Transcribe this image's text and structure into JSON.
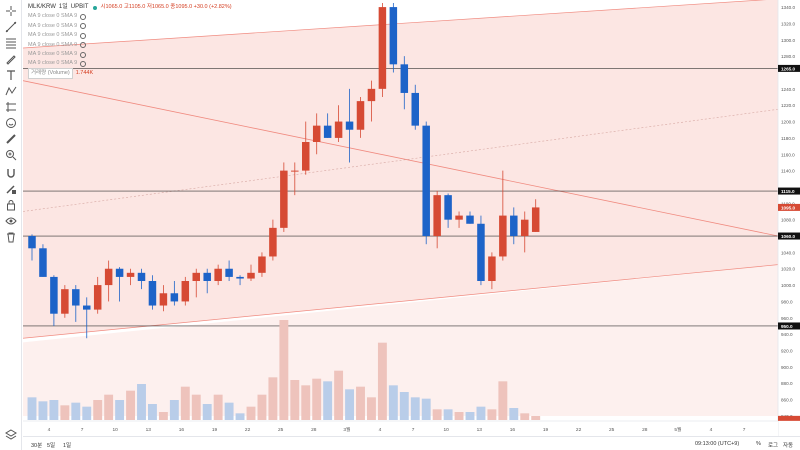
{
  "legend": {
    "symbol": "MLK/KRW",
    "interval": "1일",
    "exchange": "UPBIT",
    "ohlc": "시1065.0 고1105.0 저1065.0 종1095.0 +30.0 (+2.82%)",
    "ma_rows": [
      "MA 9 close 0 SMA 9",
      "MA 9 close 0 SMA 9",
      "MA 9 close 0 SMA 9",
      "MA 9 close 0 SMA 9",
      "MA 9 close 0 SMA 9",
      "MA 9 close 0 SMA 9"
    ],
    "volume_label": "거래량 (Volume)",
    "volume_value": "1.744K"
  },
  "price_axis": {
    "ticks": [
      "1340.0",
      "1320.0",
      "1300.0",
      "1280.0",
      "1240.0",
      "1220.0",
      "1200.0",
      "1180.0",
      "1160.0",
      "1140.0",
      "1100.0",
      "1080.0",
      "1040.0",
      "1020.0",
      "1000.0",
      "980.0",
      "960.0",
      "940.0",
      "920.0",
      "900.0",
      "880.0",
      "860.0",
      "840.0"
    ],
    "markers": [
      {
        "label": "1265.0",
        "kind": "hline"
      },
      {
        "label": "1115.0",
        "kind": "hline"
      },
      {
        "label": "1095.0",
        "kind": "current"
      },
      {
        "label": "1060.0",
        "kind": "hline"
      },
      {
        "label": "950.0",
        "kind": "hline"
      },
      {
        "label": "",
        "kind": "volume"
      }
    ]
  },
  "time_axis": {
    "labels": [
      "4",
      "7",
      "10",
      "13",
      "16",
      "19",
      "22",
      "25",
      "28",
      "3월",
      "4",
      "7",
      "10",
      "13",
      "16",
      "19",
      "22",
      "25",
      "28",
      "5월",
      "4",
      "7"
    ]
  },
  "bottom": {
    "ranges": [
      "30분",
      "5일",
      "1일"
    ],
    "clock": "09:13:00 (UTC+9)",
    "percent": "%",
    "log": "로그",
    "auto": "자동"
  },
  "tools": [
    "crosshair-icon",
    "trendline-icon",
    "fib-icon",
    "brush-icon",
    "text-icon",
    "pattern-icon",
    "forecast-icon",
    "emoji-icon",
    "ruler-icon",
    "zoom-icon",
    "magnet-icon",
    "lock-drawing-icon",
    "lock-icon",
    "eye-icon",
    "trash-icon"
  ],
  "colors": {
    "up": "#d64a34",
    "down": "#1d63c8",
    "vol_up": "#eec3bc",
    "vol_down": "#b9cde9",
    "channel_fill": "#fce6e3",
    "channel_line": "#f08b80",
    "current_marker": "#d64a34"
  },
  "chart_data": {
    "type": "candlestick",
    "y_unit": "KRW",
    "ylim": [
      835,
      1345
    ],
    "candles": [
      {
        "o": 1060,
        "h": 1062,
        "l": 1030,
        "c": 1045,
        "v": 0.34
      },
      {
        "o": 1045,
        "h": 1050,
        "l": 1010,
        "c": 1010,
        "v": 0.28
      },
      {
        "o": 1010,
        "h": 1012,
        "l": 950,
        "c": 965,
        "v": 0.3
      },
      {
        "o": 965,
        "h": 1000,
        "l": 960,
        "c": 995,
        "v": 0.22
      },
      {
        "o": 995,
        "h": 1000,
        "l": 955,
        "c": 975,
        "v": 0.26
      },
      {
        "o": 975,
        "h": 985,
        "l": 935,
        "c": 970,
        "v": 0.2
      },
      {
        "o": 970,
        "h": 1010,
        "l": 965,
        "c": 1000,
        "v": 0.3
      },
      {
        "o": 1000,
        "h": 1030,
        "l": 980,
        "c": 1020,
        "v": 0.38
      },
      {
        "o": 1020,
        "h": 1022,
        "l": 980,
        "c": 1010,
        "v": 0.3
      },
      {
        "o": 1010,
        "h": 1020,
        "l": 1000,
        "c": 1015,
        "v": 0.44
      },
      {
        "o": 1015,
        "h": 1020,
        "l": 995,
        "c": 1005,
        "v": 0.54
      },
      {
        "o": 1005,
        "h": 1012,
        "l": 970,
        "c": 975,
        "v": 0.24
      },
      {
        "o": 975,
        "h": 1000,
        "l": 968,
        "c": 990,
        "v": 0.12
      },
      {
        "o": 990,
        "h": 1005,
        "l": 975,
        "c": 980,
        "v": 0.3
      },
      {
        "o": 980,
        "h": 1010,
        "l": 975,
        "c": 1005,
        "v": 0.5
      },
      {
        "o": 1005,
        "h": 1020,
        "l": 985,
        "c": 1015,
        "v": 0.38
      },
      {
        "o": 1015,
        "h": 1020,
        "l": 990,
        "c": 1005,
        "v": 0.24
      },
      {
        "o": 1005,
        "h": 1025,
        "l": 1000,
        "c": 1020,
        "v": 0.38
      },
      {
        "o": 1020,
        "h": 1030,
        "l": 1005,
        "c": 1010,
        "v": 0.26
      },
      {
        "o": 1010,
        "h": 1012,
        "l": 1000,
        "c": 1008,
        "v": 0.1
      },
      {
        "o": 1008,
        "h": 1025,
        "l": 1005,
        "c": 1015,
        "v": 0.2
      },
      {
        "o": 1015,
        "h": 1040,
        "l": 1010,
        "c": 1035,
        "v": 0.38
      },
      {
        "o": 1035,
        "h": 1080,
        "l": 1030,
        "c": 1070,
        "v": 0.64
      },
      {
        "o": 1070,
        "h": 1150,
        "l": 1065,
        "c": 1140,
        "v": 1.5
      },
      {
        "o": 1140,
        "h": 1150,
        "l": 1110,
        "c": 1140,
        "v": 0.6
      },
      {
        "o": 1140,
        "h": 1200,
        "l": 1135,
        "c": 1175,
        "v": 0.52
      },
      {
        "o": 1175,
        "h": 1210,
        "l": 1160,
        "c": 1195,
        "v": 0.62
      },
      {
        "o": 1195,
        "h": 1210,
        "l": 1180,
        "c": 1180,
        "v": 0.58
      },
      {
        "o": 1180,
        "h": 1220,
        "l": 1175,
        "c": 1200,
        "v": 0.74
      },
      {
        "o": 1200,
        "h": 1240,
        "l": 1150,
        "c": 1190,
        "v": 0.46
      },
      {
        "o": 1190,
        "h": 1230,
        "l": 1180,
        "c": 1225,
        "v": 0.5
      },
      {
        "o": 1225,
        "h": 1250,
        "l": 1200,
        "c": 1240,
        "v": 0.34
      },
      {
        "o": 1240,
        "h": 1345,
        "l": 1230,
        "c": 1340,
        "v": 1.16
      },
      {
        "o": 1340,
        "h": 1345,
        "l": 1260,
        "c": 1270,
        "v": 0.52
      },
      {
        "o": 1270,
        "h": 1280,
        "l": 1215,
        "c": 1235,
        "v": 0.42
      },
      {
        "o": 1235,
        "h": 1245,
        "l": 1190,
        "c": 1195,
        "v": 0.34
      },
      {
        "o": 1195,
        "h": 1200,
        "l": 1050,
        "c": 1060,
        "v": 0.32
      },
      {
        "o": 1060,
        "h": 1115,
        "l": 1045,
        "c": 1110,
        "v": 0.16
      },
      {
        "o": 1110,
        "h": 1112,
        "l": 1070,
        "c": 1080,
        "v": 0.16
      },
      {
        "o": 1080,
        "h": 1090,
        "l": 1070,
        "c": 1085,
        "v": 0.12
      },
      {
        "o": 1085,
        "h": 1090,
        "l": 1075,
        "c": 1075,
        "v": 0.12
      },
      {
        "o": 1075,
        "h": 1085,
        "l": 1000,
        "c": 1005,
        "v": 0.2
      },
      {
        "o": 1005,
        "h": 1040,
        "l": 995,
        "c": 1035,
        "v": 0.16
      },
      {
        "o": 1035,
        "h": 1140,
        "l": 1030,
        "c": 1085,
        "v": 0.58
      },
      {
        "o": 1085,
        "h": 1095,
        "l": 1050,
        "c": 1060,
        "v": 0.18
      },
      {
        "o": 1060,
        "h": 1090,
        "l": 1040,
        "c": 1080,
        "v": 0.1
      },
      {
        "o": 1065,
        "h": 1105,
        "l": 1065,
        "c": 1095,
        "v": 0.06
      }
    ]
  }
}
